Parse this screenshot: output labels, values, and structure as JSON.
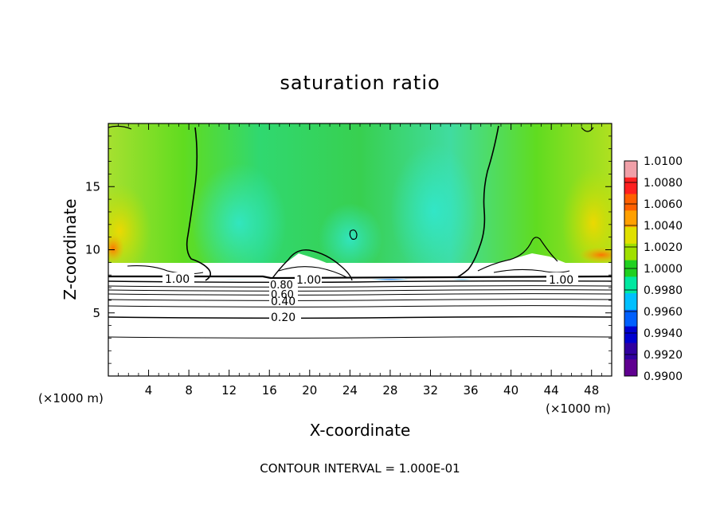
{
  "chart_data": {
    "type": "heatmap",
    "title": "saturation ratio",
    "xlabel": "X-coordinate",
    "ylabel": "Z-coordinate",
    "x_unit_label_left": "(×1000 m)",
    "x_unit_label_right": "(×1000 m)",
    "footer": "CONTOUR INTERVAL = 1.000E-01",
    "xlim": [
      0,
      50
    ],
    "ylim": [
      0,
      20
    ],
    "x_ticks": [
      4,
      8,
      12,
      16,
      20,
      24,
      28,
      32,
      36,
      40,
      44,
      48
    ],
    "x_tick_labels": [
      "4",
      "8",
      "12",
      "16",
      "20",
      "24",
      "28",
      "32",
      "36",
      "40",
      "44",
      "48"
    ],
    "y_ticks": [
      5,
      10,
      15
    ],
    "y_tick_labels": [
      "5",
      "10",
      "15"
    ],
    "contour_labels": [
      {
        "text": "1.00",
        "x": 7,
        "z": 7.7
      },
      {
        "text": "1.00",
        "x": 20,
        "z": 7.6
      },
      {
        "text": "1.00",
        "x": 45,
        "z": 7.6
      },
      {
        "text": "0.80",
        "x": 17,
        "z": 7.3
      },
      {
        "text": "0.60",
        "x": 17.2,
        "z": 6.8
      },
      {
        "text": "0.40",
        "x": 17.2,
        "z": 5.9
      },
      {
        "text": "0.20",
        "x": 17.3,
        "z": 4.6
      }
    ],
    "colorbar": {
      "min": 0.99,
      "max": 1.01,
      "labels": [
        "1.0100",
        "1.0080",
        "1.0060",
        "1.0040",
        "1.0020",
        "1.0000",
        "0.9980",
        "0.9960",
        "0.9940",
        "0.9920",
        "0.9900"
      ],
      "colors": [
        "#f0a0a8",
        "#ff2020",
        "#ff6000",
        "#ffa000",
        "#e0e000",
        "#a0e000",
        "#20d020",
        "#00e8a0",
        "#00c0ff",
        "#0060ff",
        "#0000d0",
        "#3000a0",
        "#600090"
      ]
    }
  }
}
